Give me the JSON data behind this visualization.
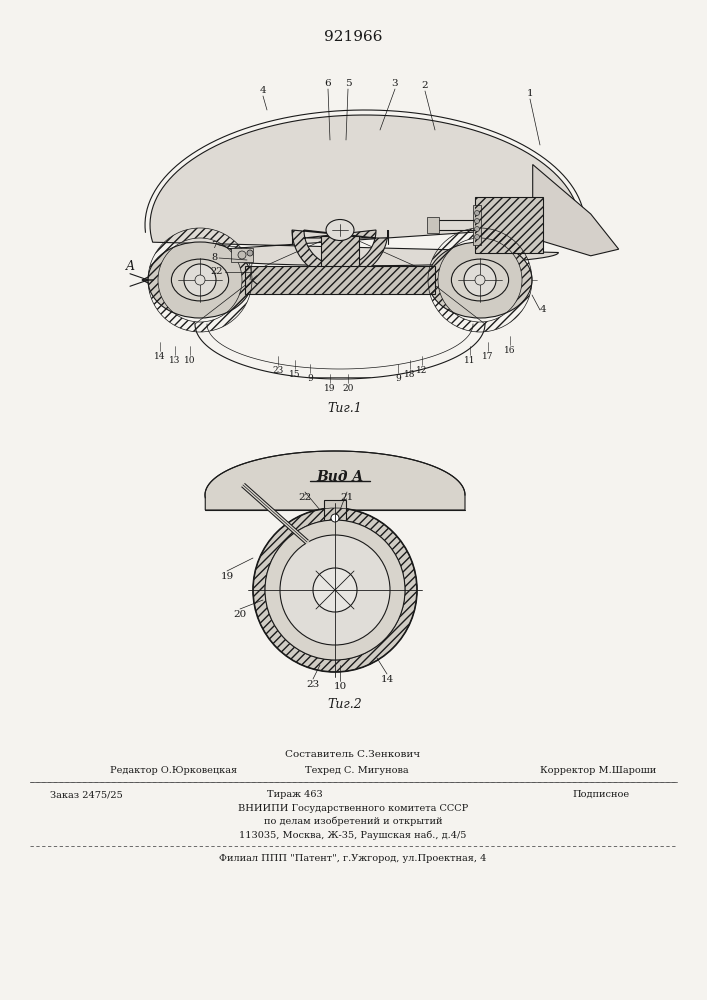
{
  "patent_number": "921966",
  "fig1_caption": "Τиг.1",
  "fig2_caption": "Τиг.2",
  "view_a_label": "Вид A",
  "bg_color": "#f5f3ef",
  "line_color": "#1a1a1a",
  "footer_sestavitel": "Составитель С.Зенкович",
  "footer_editor": "Редактор О.Юрковецкая",
  "footer_tekhred": "Техред С. Мигунова",
  "footer_correktor": "Корректор М.Шароши",
  "footer_zakaz": "Заказ 2475/25",
  "footer_tirazh": "Тираж 463",
  "footer_podpisnoe": "Подписное",
  "footer_vniip1": "ВНИИПИ Государственного комитета СССР",
  "footer_vniip2": "по делам изобретений и открытий",
  "footer_addr": "113035, Москва, Ж-35, Раушская наб., д.4/5",
  "footer_filial": "Филиал ППП \"Патент\", г.Ужгород, ул.Проектная, 4"
}
